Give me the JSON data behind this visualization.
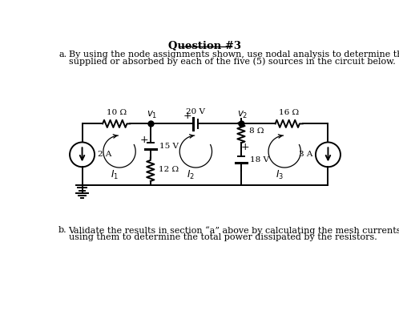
{
  "title": "Question #3",
  "part_a_label": "a.",
  "part_a_line1": "By using the node assignments shown, use nodal analysis to determine the power",
  "part_a_line2": "supplied or absorbed by each of the five (5) sources in the circuit below.",
  "part_b_label": "b.",
  "part_b_line1": "Validate the results in section “a” above by calculating the mesh currents and",
  "part_b_line2": "using them to determine the total power dissipated by the resistors.",
  "bg_color": "#ffffff",
  "line_color": "#000000",
  "resistor_10": "10 Ω",
  "resistor_16": "16 Ω",
  "resistor_8": "8 Ω",
  "resistor_12": "12 Ω",
  "vs_20": "20 V",
  "vs_15": "15 V",
  "vs_18": "18 V",
  "cs_2": "2 A",
  "cs_3": "3 A",
  "node_v1": "$v_1$",
  "node_v2": "$v_2$",
  "mesh_I1": "$I_1$",
  "mesh_I2": "$I_2$",
  "mesh_I3": "$I_3$"
}
